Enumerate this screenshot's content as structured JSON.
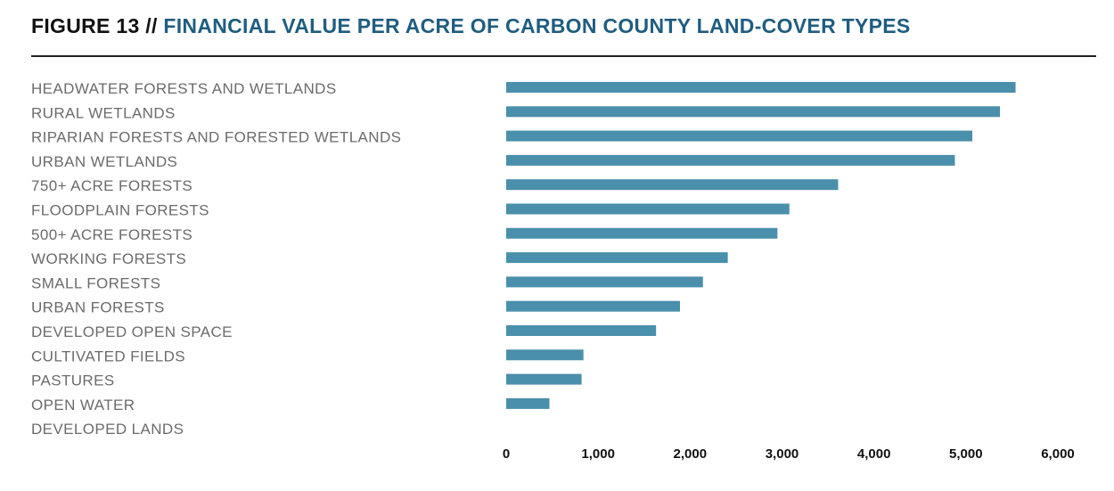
{
  "figure": {
    "label": "FIGURE 13",
    "separator": "//",
    "title": "FINANCIAL VALUE PER ACRE OF CARBON COUNTY LAND-COVER TYPES"
  },
  "colors": {
    "bar": "#4a8fab",
    "title_accent": "#1f5d80",
    "label": "#6b6b6b"
  },
  "chart_data": {
    "type": "bar",
    "orientation": "horizontal",
    "categories": [
      "HEADWATER FORESTS AND WETLANDS",
      "RURAL WETLANDS",
      "RIPARIAN FORESTS AND FORESTED WETLANDS",
      "URBAN WETLANDS",
      "750+ ACRE FORESTS",
      "FLOODPLAIN FORESTS",
      "500+ ACRE FORESTS",
      "WORKING FORESTS",
      "SMALL FORESTS",
      "URBAN FORESTS",
      "DEVELOPED OPEN SPACE",
      "CULTIVATED FIELDS",
      "PASTURES",
      "OPEN WATER",
      "DEVELOPED LANDS"
    ],
    "values": [
      5540,
      5370,
      5070,
      4880,
      3610,
      3080,
      2950,
      2410,
      2140,
      1890,
      1630,
      840,
      820,
      470,
      0
    ],
    "xlim": [
      0,
      6000
    ],
    "xticks": [
      "0",
      "1,000",
      "2,000",
      "3,000",
      "4,000",
      "5,000",
      "6,000"
    ],
    "xtick_values": [
      0,
      1000,
      2000,
      3000,
      4000,
      5000,
      6000
    ],
    "grid": false,
    "legend": "none"
  }
}
